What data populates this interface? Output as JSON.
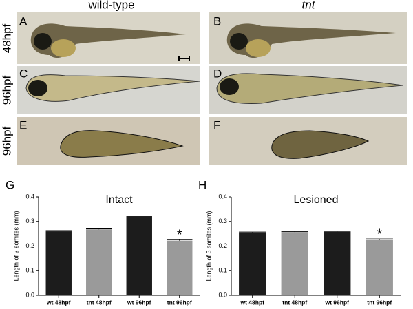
{
  "figure": {
    "column_headers": [
      "wild-type",
      "tnt"
    ],
    "row_labels": [
      "48hpf",
      "96hpf",
      "96hpf"
    ],
    "panel_labels": [
      "A",
      "B",
      "C",
      "D",
      "E",
      "F"
    ]
  },
  "chart_data": [
    {
      "type": "bar",
      "panel_label": "G",
      "title": "Intact",
      "y_label": "Length of 3 somites (mm)",
      "categories": [
        "wt 48hpf",
        "tnt 48hpf",
        "wt 96hpf",
        "tnt 96hpf"
      ],
      "values": [
        0.26,
        0.268,
        0.317,
        0.222
      ],
      "errors": [
        0.003,
        0.002,
        0.003,
        0.004
      ],
      "colors": [
        "#1c1c1c",
        "#9a9a9a",
        "#1c1c1c",
        "#9a9a9a"
      ],
      "annotations": [
        null,
        null,
        null,
        "*"
      ],
      "ylim": [
        0,
        0.4
      ],
      "yticks": [
        {
          "value": 0,
          "label": "0.0"
        },
        0.1,
        0.2,
        0.3,
        0.4
      ]
    },
    {
      "type": "bar",
      "panel_label": "H",
      "title": "Lesioned",
      "y_label": "Length of 3 somites (mm)",
      "categories": [
        "wt 48hpf",
        "tnt 48hpf",
        "wt 96hpf",
        "tnt 96hpf"
      ],
      "values": [
        0.255,
        0.257,
        0.258,
        0.225
      ],
      "errors": [
        0.002,
        0.002,
        0.002,
        0.004
      ],
      "colors": [
        "#1c1c1c",
        "#9a9a9a",
        "#1c1c1c",
        "#9a9a9a"
      ],
      "annotations": [
        null,
        null,
        null,
        "*"
      ],
      "ylim": [
        0,
        0.4
      ],
      "yticks": [
        {
          "value": 0,
          "label": "0.0"
        },
        0.1,
        0.2,
        0.3,
        0.4
      ]
    }
  ]
}
